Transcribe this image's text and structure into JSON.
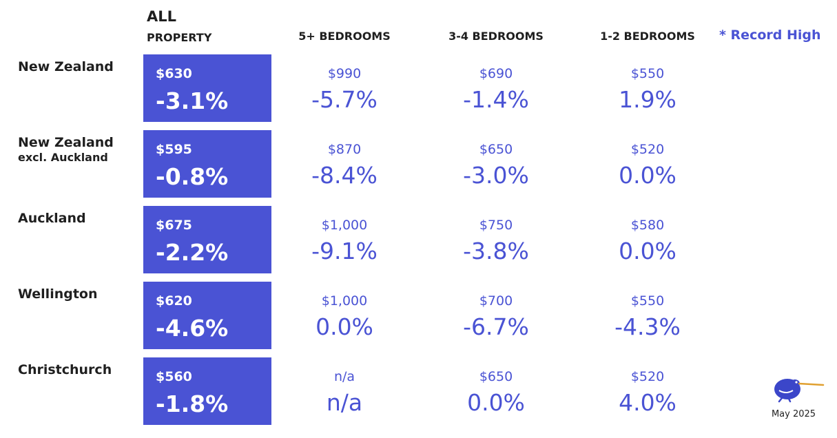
{
  "header": {
    "all_line1": "ALL",
    "all_line2": "PROPERTY",
    "col1": "5+ BEDROOMS",
    "col2": "3-4 BEDROOMS",
    "col3": "1-2 BEDROOMS",
    "legend": "* Record High"
  },
  "colors": {
    "accent": "#4a53d4",
    "text": "#1f1f1f"
  },
  "rows": [
    {
      "region": "New Zealand",
      "region_sub": "",
      "all": {
        "price": "$630",
        "pct": "-3.1%"
      },
      "cols": [
        {
          "price": "$990",
          "pct": "-5.7%"
        },
        {
          "price": "$690",
          "pct": "-1.4%"
        },
        {
          "price": "$550",
          "pct": "1.9%"
        }
      ]
    },
    {
      "region": "New Zealand",
      "region_sub": "excl. Auckland",
      "all": {
        "price": "$595",
        "pct": "-0.8%"
      },
      "cols": [
        {
          "price": "$870",
          "pct": "-8.4%"
        },
        {
          "price": "$650",
          "pct": "-3.0%"
        },
        {
          "price": "$520",
          "pct": "0.0%"
        }
      ]
    },
    {
      "region": "Auckland",
      "region_sub": "",
      "all": {
        "price": "$675",
        "pct": "-2.2%"
      },
      "cols": [
        {
          "price": "$1,000",
          "pct": "-9.1%"
        },
        {
          "price": "$750",
          "pct": "-3.8%"
        },
        {
          "price": "$580",
          "pct": "0.0%"
        }
      ]
    },
    {
      "region": "Wellington",
      "region_sub": "",
      "all": {
        "price": "$620",
        "pct": "-4.6%"
      },
      "cols": [
        {
          "price": "$1,000",
          "pct": "0.0%"
        },
        {
          "price": "$700",
          "pct": "-6.7%"
        },
        {
          "price": "$550",
          "pct": "-4.3%"
        }
      ]
    },
    {
      "region": "Christchurch",
      "region_sub": "",
      "all": {
        "price": "$560",
        "pct": "-1.8%"
      },
      "cols": [
        {
          "price": "n/a",
          "pct": "n/a"
        },
        {
          "price": "$650",
          "pct": "0.0%"
        },
        {
          "price": "$520",
          "pct": "4.0%"
        }
      ]
    }
  ],
  "footer": {
    "logo_icon": "kiwi-bird-icon",
    "date": "May 2025"
  }
}
